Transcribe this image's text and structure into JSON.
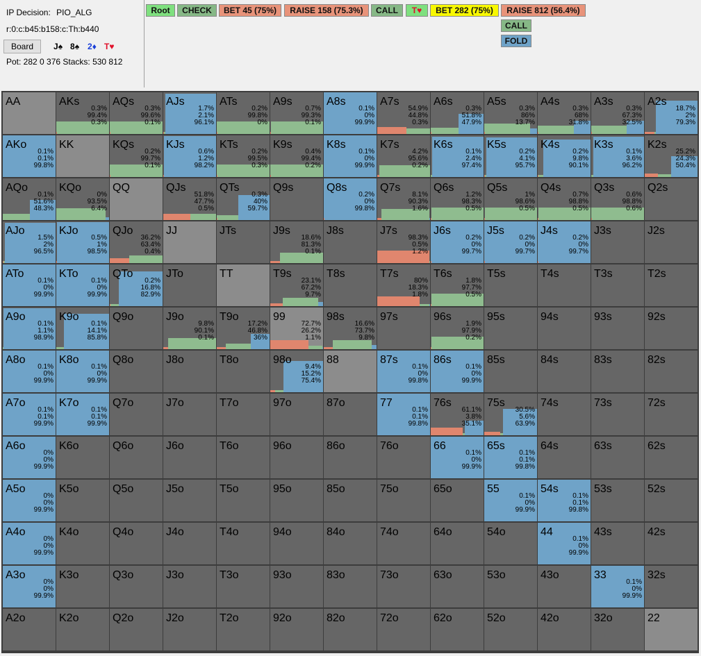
{
  "header": {
    "decision_label": "IP Decision:",
    "decision_value": "PIO_ALG",
    "node_path": "r:0:c:b45:b158:c:Th:b440",
    "board_button": "Board",
    "board_cards": [
      {
        "rank": "J",
        "suit": "♠",
        "color": "#000000"
      },
      {
        "rank": "8",
        "suit": "♠",
        "color": "#000000"
      },
      {
        "rank": "2",
        "suit": "♦",
        "color": "#1a3fd8"
      },
      {
        "rank": "T",
        "suit": "♥",
        "color": "#e0102a"
      }
    ],
    "pot_line": "Pot: 282 0 376 Stacks: 530 812"
  },
  "actions": [
    {
      "label": "Root",
      "color": "#7fe07f"
    },
    {
      "label": "CHECK",
      "color": "#86b886"
    },
    {
      "label": "BET 45 (75%)",
      "color": "#e8937a"
    },
    {
      "label": "RAISE 158 (75.3%)",
      "color": "#e8937a"
    },
    {
      "label": "CALL",
      "color": "#86b886"
    },
    {
      "label": "T♥",
      "color": "#7fe07f"
    },
    {
      "label": "BET 282 (75%)",
      "color": "#f8f800"
    },
    {
      "label": "RAISE 812 (56.4%)",
      "color": "#e8937a"
    },
    {
      "label": "CALL",
      "color": "#86b886"
    },
    {
      "label": "FOLD",
      "color": "#6fa3c8"
    }
  ],
  "colors": {
    "raise": "#e0866e",
    "call": "#8fbc8f",
    "fold": "#6fa3c8",
    "cell": "#666666",
    "pair": "#8c8c8c"
  },
  "grid": [
    [
      {
        "h": "AA"
      },
      {
        "h": "AKs",
        "p": [
          "0.3%",
          "99.4%",
          "0.3%"
        ],
        "f": [
          0.003,
          0.994,
          0.003
        ]
      },
      {
        "h": "AQs",
        "p": [
          "0.3%",
          "99.6%",
          "0.1%"
        ],
        "f": [
          0.003,
          0.996,
          0.001
        ]
      },
      {
        "h": "AJs",
        "p": [
          "1.7%",
          "2.1%",
          "96.1%"
        ],
        "f": [
          0.017,
          0.021,
          0.961
        ]
      },
      {
        "h": "ATs",
        "p": [
          "0.2%",
          "99.8%",
          "0%"
        ],
        "f": [
          0.002,
          0.998,
          0
        ]
      },
      {
        "h": "A9s",
        "p": [
          "0.7%",
          "99.3%",
          "0.1%"
        ],
        "f": [
          0.007,
          0.993,
          0.001
        ]
      },
      {
        "h": "A8s",
        "p": [
          "0.1%",
          "0%",
          "99.9%"
        ],
        "f": [
          0.001,
          0,
          0.999
        ]
      },
      {
        "h": "A7s",
        "p": [
          "54.9%",
          "44.8%",
          "0.3%"
        ],
        "f": [
          0.549,
          0.448,
          0.003
        ]
      },
      {
        "h": "A6s",
        "p": [
          "0.3%",
          "51.8%",
          "47.9%"
        ],
        "f": [
          0.003,
          0.518,
          0.479
        ]
      },
      {
        "h": "A5s",
        "p": [
          "0.3%",
          "86%",
          "13.7%"
        ],
        "f": [
          0.003,
          0.86,
          0.137
        ]
      },
      {
        "h": "A4s",
        "p": [
          "0.3%",
          "68%",
          "31.8%"
        ],
        "f": [
          0.003,
          0.68,
          0.318
        ]
      },
      {
        "h": "A3s",
        "p": [
          "0.3%",
          "67.3%",
          "32.5%"
        ],
        "f": [
          0.003,
          0.673,
          0.325
        ]
      },
      {
        "h": "A2s",
        "p": [
          "18.7%",
          "2%",
          "79.3%"
        ],
        "f": [
          0.187,
          0.02,
          0.793
        ]
      }
    ],
    [
      {
        "h": "AKo",
        "p": [
          "0.1%",
          "0.1%",
          "99.8%"
        ],
        "f": [
          0.001,
          0.001,
          0.998
        ]
      },
      {
        "h": "KK"
      },
      {
        "h": "KQs",
        "p": [
          "0.2%",
          "99.7%",
          "0.1%"
        ],
        "f": [
          0.002,
          0.997,
          0.001
        ]
      },
      {
        "h": "KJs",
        "p": [
          "0.6%",
          "1.2%",
          "98.2%"
        ],
        "f": [
          0.006,
          0.012,
          0.982
        ]
      },
      {
        "h": "KTs",
        "p": [
          "0.2%",
          "99.5%",
          "0.3%"
        ],
        "f": [
          0.002,
          0.995,
          0.003
        ]
      },
      {
        "h": "K9s",
        "p": [
          "0.4%",
          "99.4%",
          "0.2%"
        ],
        "f": [
          0.004,
          0.994,
          0.002
        ]
      },
      {
        "h": "K8s",
        "p": [
          "0.1%",
          "0%",
          "99.9%"
        ],
        "f": [
          0.001,
          0,
          0.999
        ]
      },
      {
        "h": "K7s",
        "p": [
          "4.2%",
          "95.6%",
          "0.2%"
        ],
        "f": [
          0.042,
          0.956,
          0.002
        ]
      },
      {
        "h": "K6s",
        "p": [
          "0.1%",
          "2.4%",
          "97.4%"
        ],
        "f": [
          0.001,
          0.024,
          0.974
        ]
      },
      {
        "h": "K5s",
        "p": [
          "0.2%",
          "4.1%",
          "95.7%"
        ],
        "f": [
          0.002,
          0.041,
          0.957
        ]
      },
      {
        "h": "K4s",
        "p": [
          "0.2%",
          "9.8%",
          "90.1%"
        ],
        "f": [
          0.002,
          0.098,
          0.901
        ]
      },
      {
        "h": "K3s",
        "p": [
          "0.1%",
          "3.6%",
          "96.2%"
        ],
        "f": [
          0.001,
          0.036,
          0.962
        ]
      },
      {
        "h": "K2s",
        "p": [
          "25.2%",
          "24.3%",
          "50.4%"
        ],
        "f": [
          0.252,
          0.243,
          0.504
        ]
      }
    ],
    [
      {
        "h": "AQo",
        "p": [
          "0.1%",
          "51.6%",
          "48.3%"
        ],
        "f": [
          0.001,
          0.516,
          0.483
        ]
      },
      {
        "h": "KQo",
        "p": [
          "0%",
          "93.5%",
          "6.4%"
        ],
        "f": [
          0,
          0.935,
          0.064
        ]
      },
      {
        "h": "QQ"
      },
      {
        "h": "QJs",
        "p": [
          "51.8%",
          "47.7%",
          "0.5%"
        ],
        "f": [
          0.518,
          0.477,
          0.005
        ]
      },
      {
        "h": "QTs",
        "p": [
          "0.3%",
          "40%",
          "59.7%"
        ],
        "f": [
          0.003,
          0.4,
          0.597
        ]
      },
      {
        "h": "Q9s"
      },
      {
        "h": "Q8s",
        "p": [
          "0.2%",
          "0%",
          "99.8%"
        ],
        "f": [
          0.002,
          0,
          0.998
        ]
      },
      {
        "h": "Q7s",
        "p": [
          "8.1%",
          "90.3%",
          "1.6%"
        ],
        "f": [
          0.081,
          0.903,
          0.016
        ]
      },
      {
        "h": "Q6s",
        "p": [
          "1.2%",
          "98.3%",
          "0.5%"
        ],
        "f": [
          0.012,
          0.983,
          0.005
        ]
      },
      {
        "h": "Q5s",
        "p": [
          "1%",
          "98.6%",
          "0.5%"
        ],
        "f": [
          0.01,
          0.986,
          0.005
        ]
      },
      {
        "h": "Q4s",
        "p": [
          "0.7%",
          "98.8%",
          "0.5%"
        ],
        "f": [
          0.007,
          0.988,
          0.005
        ]
      },
      {
        "h": "Q3s",
        "p": [
          "0.6%",
          "98.8%",
          "0.6%"
        ],
        "f": [
          0.006,
          0.988,
          0.006
        ]
      },
      {
        "h": "Q2s"
      }
    ],
    [
      {
        "h": "AJo",
        "p": [
          "1.5%",
          "2%",
          "96.5%"
        ],
        "f": [
          0.015,
          0.02,
          0.965
        ]
      },
      {
        "h": "KJo",
        "p": [
          "0.5%",
          "1%",
          "98.5%"
        ],
        "f": [
          0.005,
          0.01,
          0.985
        ]
      },
      {
        "h": "QJo",
        "p": [
          "36.2%",
          "63.4%",
          "0.4%"
        ],
        "f": [
          0.362,
          0.634,
          0.004
        ]
      },
      {
        "h": "JJ"
      },
      {
        "h": "JTs"
      },
      {
        "h": "J9s",
        "p": [
          "18.6%",
          "81.3%",
          "0.1%"
        ],
        "f": [
          0.186,
          0.813,
          0.001
        ]
      },
      {
        "h": "J8s"
      },
      {
        "h": "J7s",
        "p": [
          "98.3%",
          "0.5%",
          "1.2%"
        ],
        "f": [
          0.983,
          0.005,
          0.012
        ]
      },
      {
        "h": "J6s",
        "p": [
          "0.2%",
          "0%",
          "99.7%"
        ],
        "f": [
          0.002,
          0,
          0.997
        ]
      },
      {
        "h": "J5s",
        "p": [
          "0.2%",
          "0%",
          "99.7%"
        ],
        "f": [
          0.002,
          0,
          0.997
        ]
      },
      {
        "h": "J4s",
        "p": [
          "0.2%",
          "0%",
          "99.7%"
        ],
        "f": [
          0.002,
          0,
          0.997
        ]
      },
      {
        "h": "J3s"
      },
      {
        "h": "J2s"
      }
    ],
    [
      {
        "h": "ATo",
        "p": [
          "0.1%",
          "0%",
          "99.9%"
        ],
        "f": [
          0.001,
          0,
          0.999
        ]
      },
      {
        "h": "KTo",
        "p": [
          "0.1%",
          "0%",
          "99.9%"
        ],
        "f": [
          0.001,
          0,
          0.999
        ]
      },
      {
        "h": "QTo",
        "p": [
          "0.2%",
          "16.8%",
          "82.9%"
        ],
        "f": [
          0.002,
          0.168,
          0.829
        ]
      },
      {
        "h": "JTo"
      },
      {
        "h": "TT"
      },
      {
        "h": "T9s",
        "p": [
          "23.1%",
          "67.2%",
          "9.7%"
        ],
        "f": [
          0.231,
          0.672,
          0.097
        ]
      },
      {
        "h": "T8s"
      },
      {
        "h": "T7s",
        "p": [
          "80%",
          "18.3%",
          "1.8%"
        ],
        "f": [
          0.8,
          0.183,
          0.018
        ]
      },
      {
        "h": "T6s",
        "p": [
          "1.8%",
          "97.7%",
          "0.5%"
        ],
        "f": [
          0.018,
          0.977,
          0.005
        ]
      },
      {
        "h": "T5s"
      },
      {
        "h": "T4s"
      },
      {
        "h": "T3s"
      },
      {
        "h": "T2s"
      }
    ],
    [
      {
        "h": "A9o",
        "p": [
          "0.1%",
          "1.1%",
          "98.9%"
        ],
        "f": [
          0.001,
          0.011,
          0.989
        ]
      },
      {
        "h": "K9o",
        "p": [
          "0.1%",
          "14.1%",
          "85.8%"
        ],
        "f": [
          0.001,
          0.141,
          0.858
        ]
      },
      {
        "h": "Q9o"
      },
      {
        "h": "J9o",
        "p": [
          "9.8%",
          "90.1%",
          "0.1%"
        ],
        "f": [
          0.098,
          0.901,
          0.001
        ]
      },
      {
        "h": "T9o",
        "p": [
          "17.2%",
          "46.8%",
          "36%"
        ],
        "f": [
          0.172,
          0.468,
          0.36
        ]
      },
      {
        "h": "99",
        "p": [
          "72.7%",
          "26.2%",
          "1.1%"
        ],
        "f": [
          0.727,
          0.262,
          0.011
        ]
      },
      {
        "h": "98s",
        "p": [
          "16.6%",
          "73.7%",
          "9.8%"
        ],
        "f": [
          0.166,
          0.737,
          0.098
        ]
      },
      {
        "h": "97s"
      },
      {
        "h": "96s",
        "p": [
          "1.9%",
          "97.9%",
          "0.2%"
        ],
        "f": [
          0.019,
          0.979,
          0.002
        ]
      },
      {
        "h": "95s"
      },
      {
        "h": "94s"
      },
      {
        "h": "93s"
      },
      {
        "h": "92s"
      }
    ],
    [
      {
        "h": "A8o",
        "p": [
          "0.1%",
          "0%",
          "99.9%"
        ],
        "f": [
          0.001,
          0,
          0.999
        ]
      },
      {
        "h": "K8o",
        "p": [
          "0.1%",
          "0%",
          "99.9%"
        ],
        "f": [
          0.001,
          0,
          0.999
        ]
      },
      {
        "h": "Q8o"
      },
      {
        "h": "J8o"
      },
      {
        "h": "T8o"
      },
      {
        "h": "98o",
        "p": [
          "9.4%",
          "15.2%",
          "75.4%"
        ],
        "f": [
          0.094,
          0.152,
          0.754
        ]
      },
      {
        "h": "88"
      },
      {
        "h": "87s",
        "p": [
          "0.1%",
          "0%",
          "99.8%"
        ],
        "f": [
          0.001,
          0,
          0.998
        ]
      },
      {
        "h": "86s",
        "p": [
          "0.1%",
          "0%",
          "99.9%"
        ],
        "f": [
          0.001,
          0,
          0.999
        ]
      },
      {
        "h": "85s"
      },
      {
        "h": "84s"
      },
      {
        "h": "83s"
      },
      {
        "h": "82s"
      }
    ],
    [
      {
        "h": "A7o",
        "p": [
          "0.1%",
          "0.1%",
          "99.9%"
        ],
        "f": [
          0.001,
          0.001,
          0.999
        ]
      },
      {
        "h": "K7o",
        "p": [
          "0.1%",
          "0.1%",
          "99.9%"
        ],
        "f": [
          0.001,
          0.001,
          0.999
        ]
      },
      {
        "h": "Q7o"
      },
      {
        "h": "J7o"
      },
      {
        "h": "T7o"
      },
      {
        "h": "97o"
      },
      {
        "h": "87o"
      },
      {
        "h": "77",
        "p": [
          "0.1%",
          "0.1%",
          "99.8%"
        ],
        "f": [
          0.001,
          0.001,
          0.998
        ]
      },
      {
        "h": "76s",
        "p": [
          "61.1%",
          "3.8%",
          "35.1%"
        ],
        "f": [
          0.611,
          0.038,
          0.351
        ]
      },
      {
        "h": "75s",
        "p": [
          "30.5%",
          "5.6%",
          "63.9%"
        ],
        "f": [
          0.305,
          0.056,
          0.639
        ]
      },
      {
        "h": "74s"
      },
      {
        "h": "73s"
      },
      {
        "h": "72s"
      }
    ],
    [
      {
        "h": "A6o",
        "p": [
          "0%",
          "0%",
          "99.9%"
        ],
        "f": [
          0,
          0,
          0.999
        ]
      },
      {
        "h": "K6o"
      },
      {
        "h": "Q6o"
      },
      {
        "h": "J6o"
      },
      {
        "h": "T6o"
      },
      {
        "h": "96o"
      },
      {
        "h": "86o"
      },
      {
        "h": "76o"
      },
      {
        "h": "66",
        "p": [
          "0.1%",
          "0%",
          "99.9%"
        ],
        "f": [
          0.001,
          0,
          0.999
        ]
      },
      {
        "h": "65s",
        "p": [
          "0.1%",
          "0.1%",
          "99.8%"
        ],
        "f": [
          0.001,
          0.001,
          0.998
        ]
      },
      {
        "h": "64s"
      },
      {
        "h": "63s"
      },
      {
        "h": "62s"
      }
    ],
    [
      {
        "h": "A5o",
        "p": [
          "0%",
          "0%",
          "99.9%"
        ],
        "f": [
          0,
          0,
          0.999
        ]
      },
      {
        "h": "K5o"
      },
      {
        "h": "Q5o"
      },
      {
        "h": "J5o"
      },
      {
        "h": "T5o"
      },
      {
        "h": "95o"
      },
      {
        "h": "85o"
      },
      {
        "h": "75o"
      },
      {
        "h": "65o"
      },
      {
        "h": "55",
        "p": [
          "0.1%",
          "0%",
          "99.9%"
        ],
        "f": [
          0.001,
          0,
          0.999
        ]
      },
      {
        "h": "54s",
        "p": [
          "0.1%",
          "0.1%",
          "99.8%"
        ],
        "f": [
          0.001,
          0.001,
          0.998
        ]
      },
      {
        "h": "53s"
      },
      {
        "h": "52s"
      }
    ],
    [
      {
        "h": "A4o",
        "p": [
          "0%",
          "0%",
          "99.9%"
        ],
        "f": [
          0,
          0,
          0.999
        ]
      },
      {
        "h": "K4o"
      },
      {
        "h": "Q4o"
      },
      {
        "h": "J4o"
      },
      {
        "h": "T4o"
      },
      {
        "h": "94o"
      },
      {
        "h": "84o"
      },
      {
        "h": "74o"
      },
      {
        "h": "64o"
      },
      {
        "h": "54o"
      },
      {
        "h": "44",
        "p": [
          "0.1%",
          "0%",
          "99.9%"
        ],
        "f": [
          0.001,
          0,
          0.999
        ]
      },
      {
        "h": "43s"
      },
      {
        "h": "42s"
      }
    ],
    [
      {
        "h": "A3o",
        "p": [
          "0%",
          "0%",
          "99.9%"
        ],
        "f": [
          0,
          0,
          0.999
        ]
      },
      {
        "h": "K3o"
      },
      {
        "h": "Q3o"
      },
      {
        "h": "J3o"
      },
      {
        "h": "T3o"
      },
      {
        "h": "93o"
      },
      {
        "h": "83o"
      },
      {
        "h": "73o"
      },
      {
        "h": "63o"
      },
      {
        "h": "53o"
      },
      {
        "h": "43o"
      },
      {
        "h": "33",
        "p": [
          "0.1%",
          "0%",
          "99.9%"
        ],
        "f": [
          0.001,
          0,
          0.999
        ]
      },
      {
        "h": "32s"
      }
    ],
    [
      {
        "h": "A2o"
      },
      {
        "h": "K2o"
      },
      {
        "h": "Q2o"
      },
      {
        "h": "J2o"
      },
      {
        "h": "T2o"
      },
      {
        "h": "92o"
      },
      {
        "h": "82o"
      },
      {
        "h": "72o"
      },
      {
        "h": "62o"
      },
      {
        "h": "52o"
      },
      {
        "h": "42o"
      },
      {
        "h": "32o"
      },
      {
        "h": "22"
      }
    ]
  ]
}
